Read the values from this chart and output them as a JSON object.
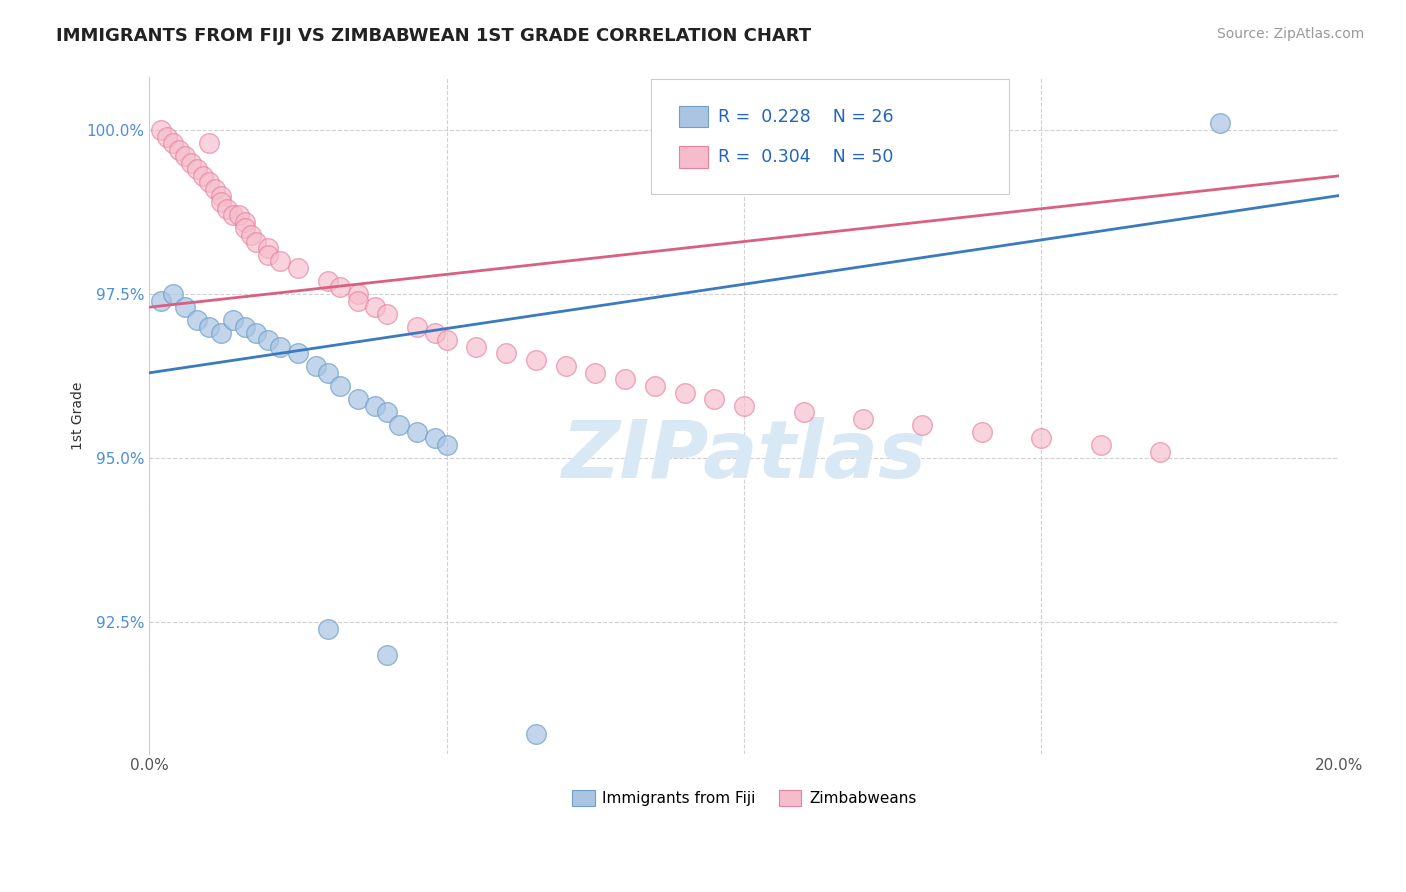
{
  "title": "IMMIGRANTS FROM FIJI VS ZIMBABWEAN 1ST GRADE CORRELATION CHART",
  "source": "Source: ZipAtlas.com",
  "ylabel": "1st Grade",
  "x_min": 0.0,
  "x_max": 0.2,
  "y_min": 0.905,
  "y_max": 1.008,
  "x_ticks": [
    0.0,
    0.05,
    0.1,
    0.15,
    0.2
  ],
  "x_tick_labels": [
    "0.0%",
    "",
    "",
    "",
    "20.0%"
  ],
  "y_ticks": [
    0.925,
    0.95,
    0.975,
    1.0
  ],
  "y_tick_labels": [
    "92.5%",
    "95.0%",
    "97.5%",
    "100.0%"
  ],
  "legend_labels": [
    "Immigrants from Fiji",
    "Zimbabweans"
  ],
  "fiji_color": "#aac4e2",
  "fiji_edge_color": "#6da0cc",
  "zimbabwe_color": "#f5bccb",
  "zimbabwe_edge_color": "#e880a0",
  "fiji_line_color": "#3a7abf",
  "zimbabwe_line_color": "#d96080",
  "R_fiji": 0.228,
  "N_fiji": 26,
  "R_zim": 0.304,
  "N_zim": 50,
  "fiji_x": [
    0.002,
    0.004,
    0.006,
    0.008,
    0.01,
    0.012,
    0.014,
    0.016,
    0.018,
    0.02,
    0.022,
    0.025,
    0.028,
    0.03,
    0.032,
    0.035,
    0.038,
    0.04,
    0.042,
    0.045,
    0.048,
    0.05,
    0.03,
    0.04,
    0.065,
    0.18
  ],
  "fiji_y": [
    0.974,
    0.975,
    0.973,
    0.971,
    0.97,
    0.969,
    0.971,
    0.97,
    0.969,
    0.968,
    0.967,
    0.966,
    0.964,
    0.963,
    0.961,
    0.959,
    0.958,
    0.957,
    0.955,
    0.954,
    0.953,
    0.952,
    0.924,
    0.92,
    0.908,
    1.001
  ],
  "zim_x": [
    0.002,
    0.003,
    0.004,
    0.005,
    0.006,
    0.007,
    0.008,
    0.009,
    0.01,
    0.01,
    0.011,
    0.012,
    0.012,
    0.013,
    0.014,
    0.015,
    0.016,
    0.016,
    0.017,
    0.018,
    0.02,
    0.02,
    0.022,
    0.025,
    0.03,
    0.032,
    0.035,
    0.035,
    0.038,
    0.04,
    0.045,
    0.048,
    0.05,
    0.055,
    0.06,
    0.065,
    0.07,
    0.075,
    0.08,
    0.085,
    0.09,
    0.095,
    0.1,
    0.11,
    0.12,
    0.13,
    0.14,
    0.15,
    0.16,
    0.17
  ],
  "zim_y": [
    1.0,
    0.999,
    0.998,
    0.997,
    0.996,
    0.995,
    0.994,
    0.993,
    0.998,
    0.992,
    0.991,
    0.99,
    0.989,
    0.988,
    0.987,
    0.987,
    0.986,
    0.985,
    0.984,
    0.983,
    0.982,
    0.981,
    0.98,
    0.979,
    0.977,
    0.976,
    0.975,
    0.974,
    0.973,
    0.972,
    0.97,
    0.969,
    0.968,
    0.967,
    0.966,
    0.965,
    0.964,
    0.963,
    0.962,
    0.961,
    0.96,
    0.959,
    0.958,
    0.957,
    0.956,
    0.955,
    0.954,
    0.953,
    0.952,
    0.951
  ],
  "fiji_line_x0": 0.0,
  "fiji_line_y0": 0.963,
  "fiji_line_x1": 0.2,
  "fiji_line_y1": 0.99,
  "zim_line_x0": 0.0,
  "zim_line_y0": 0.973,
  "zim_line_x1": 0.2,
  "zim_line_y1": 0.993,
  "watermark_text": "ZIPatlas",
  "grid_color": "#cccccc",
  "background_color": "#ffffff"
}
